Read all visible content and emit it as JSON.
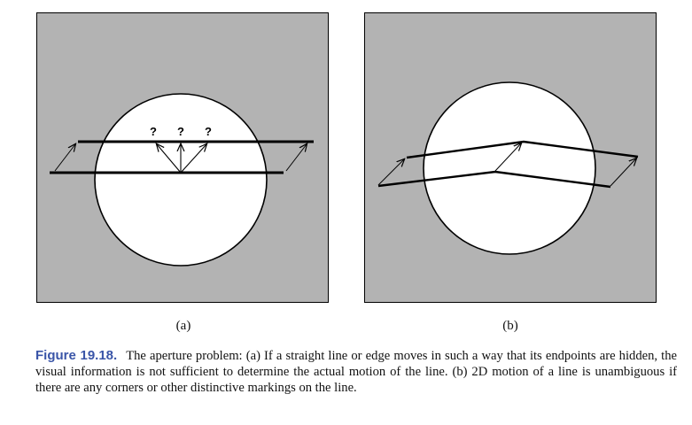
{
  "figure": {
    "number": "Figure 19.18.",
    "caption": "The aperture problem: (a) If a straight line or edge moves in such a way that its endpoints are hidden, the visual information is not sufficient to determine the actual motion of the line. (b) 2D motion of a line is unambiguous if there are any corners or other distinctive markings on the line."
  },
  "panels": {
    "a": {
      "label": "(a)",
      "question_marks": [
        "?",
        "?",
        "?"
      ]
    },
    "b": {
      "label": "(b)"
    }
  },
  "colors": {
    "background_gray": "#b3b3b3",
    "aperture_white": "#ffffff",
    "line_black": "#000000",
    "figure_number_blue": "#3a55a8"
  }
}
